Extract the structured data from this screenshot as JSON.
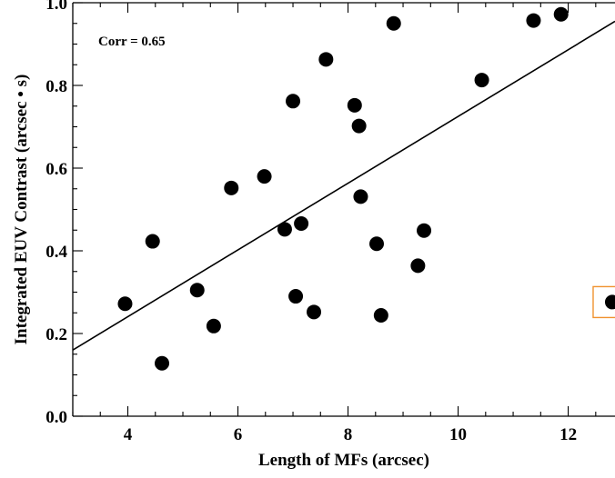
{
  "chart_data": {
    "type": "scatter",
    "xlabel": "Length of MFs (arcsec)",
    "ylabel": "Integrated EUV Contrast (arcsec • s)",
    "annotation": "Corr = 0.65",
    "xlim": [
      3.0,
      12.85
    ],
    "ylim": [
      0.0,
      1.0
    ],
    "x_ticks": [
      "4",
      "6",
      "8",
      "10",
      "12"
    ],
    "y_ticks": [
      "0.0",
      "0.2",
      "0.4",
      "0.6",
      "0.8",
      "1.0"
    ],
    "points": [
      {
        "x": 3.95,
        "y": 0.272
      },
      {
        "x": 4.45,
        "y": 0.423
      },
      {
        "x": 4.62,
        "y": 0.128
      },
      {
        "x": 5.26,
        "y": 0.305
      },
      {
        "x": 5.56,
        "y": 0.218
      },
      {
        "x": 5.88,
        "y": 0.552
      },
      {
        "x": 6.48,
        "y": 0.58
      },
      {
        "x": 6.85,
        "y": 0.452
      },
      {
        "x": 7.0,
        "y": 0.762
      },
      {
        "x": 7.05,
        "y": 0.29
      },
      {
        "x": 7.15,
        "y": 0.466
      },
      {
        "x": 7.38,
        "y": 0.252
      },
      {
        "x": 7.6,
        "y": 0.863
      },
      {
        "x": 8.12,
        "y": 0.752
      },
      {
        "x": 8.2,
        "y": 0.702
      },
      {
        "x": 8.23,
        "y": 0.531
      },
      {
        "x": 8.52,
        "y": 0.417
      },
      {
        "x": 8.6,
        "y": 0.244
      },
      {
        "x": 8.83,
        "y": 0.95
      },
      {
        "x": 9.27,
        "y": 0.364
      },
      {
        "x": 9.38,
        "y": 0.449
      },
      {
        "x": 10.43,
        "y": 0.813
      },
      {
        "x": 11.37,
        "y": 0.957
      },
      {
        "x": 11.87,
        "y": 0.972
      },
      {
        "x": 12.8,
        "y": 0.276,
        "highlighted": true
      }
    ],
    "fit_line": {
      "x": [
        3.0,
        12.85
      ],
      "y": [
        0.16,
        0.955
      ]
    },
    "highlight_color": "#f0922e",
    "marker_color": "#000000"
  }
}
